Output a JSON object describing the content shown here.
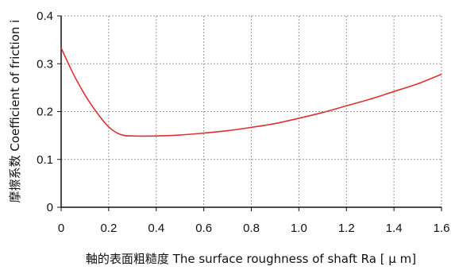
{
  "chart_data": {
    "type": "line",
    "title": "",
    "xlabel": "軸的表面粗糙度 The surface roughness of shaft Ra [ μ m]",
    "ylabel": "摩擦系数 Coefficient of friction i",
    "xlim": [
      0,
      1.6
    ],
    "ylim": [
      0,
      0.4
    ],
    "xticks": [
      "0",
      "0.2",
      "0.4",
      "0.6",
      "0.8",
      "1.0",
      "1.2",
      "1.4",
      "1.6"
    ],
    "yticks": [
      "0",
      "0.1",
      "0.2",
      "0.3",
      "0.4"
    ],
    "grid": true,
    "series": [
      {
        "name": "",
        "color": "#e03030",
        "x": [
          0,
          0.05,
          0.1,
          0.15,
          0.2,
          0.25,
          0.3,
          0.4,
          0.5,
          0.6,
          0.7,
          0.8,
          0.9,
          1.0,
          1.1,
          1.2,
          1.3,
          1.4,
          1.5,
          1.6
        ],
        "y": [
          0.333,
          0.28,
          0.235,
          0.198,
          0.168,
          0.152,
          0.149,
          0.149,
          0.151,
          0.155,
          0.16,
          0.167,
          0.175,
          0.186,
          0.198,
          0.212,
          0.226,
          0.242,
          0.258,
          0.278
        ]
      }
    ]
  }
}
